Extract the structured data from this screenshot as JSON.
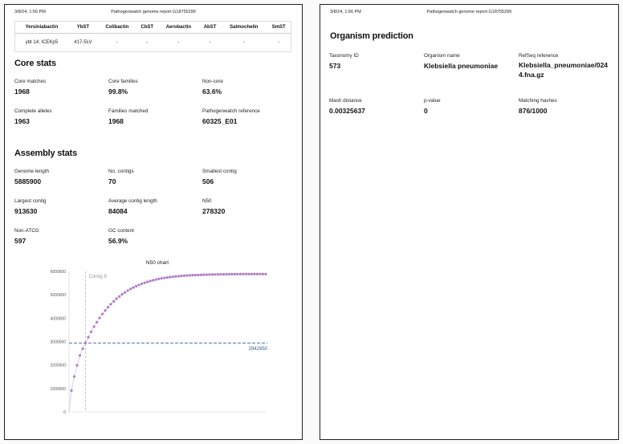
{
  "page1": {
    "date": "3/8/24, 1:56 PM",
    "report_title": "Pathogenwatch genome report G18755299",
    "typing_table": {
      "headers": [
        "Yersiniabactin",
        "YbST",
        "Colibactin",
        "CbST",
        "Aerobactin",
        "AbST",
        "Salmochelin",
        "SmST"
      ],
      "row": [
        "ybt 14; ICEKp5",
        "417-5LV",
        "-",
        "-",
        "-",
        "-",
        "-",
        "-"
      ]
    },
    "core_stats": {
      "title": "Core stats",
      "items": [
        {
          "label": "Core matches",
          "value": "1968"
        },
        {
          "label": "Core families",
          "value": "99.8%"
        },
        {
          "label": "Non-core",
          "value": "63.6%"
        },
        {
          "label": "Complete alleles",
          "value": "1963"
        },
        {
          "label": "Families matched",
          "value": "1968"
        },
        {
          "label": "Pathogenwatch reference",
          "value": "60325_E01"
        }
      ]
    },
    "assembly_stats": {
      "title": "Assembly stats",
      "items": [
        {
          "label": "Genome length",
          "value": "5885900"
        },
        {
          "label": "No. contigs",
          "value": "70"
        },
        {
          "label": "Smallest contig",
          "value": "506"
        },
        {
          "label": "Largest contig",
          "value": "913630"
        },
        {
          "label": "Average contig length",
          "value": "84084"
        },
        {
          "label": "N50",
          "value": "278320"
        },
        {
          "label": "Non-ATCG",
          "value": "597"
        },
        {
          "label": "GC content",
          "value": "56.9%"
        }
      ]
    }
  },
  "page2": {
    "date": "3/8/24, 1:56 PM",
    "report_title": "Pathogenwatch genome report G18755299",
    "organism_prediction": {
      "title": "Organism prediction",
      "items": [
        {
          "label": "Taxonomy ID",
          "value": "573"
        },
        {
          "label": "Organism name",
          "value": "Klebsiella pneumoniae"
        },
        {
          "label": "RefSeq reference",
          "value": "Klebsiella_pneumoniae/0244.fna.gz"
        },
        {
          "label": "Mash distance",
          "value": "0.00325637"
        },
        {
          "label": "p-value",
          "value": "0"
        },
        {
          "label": "Matching hashes",
          "value": "876/1000"
        }
      ]
    }
  },
  "colors": {
    "points": "#b07cc6",
    "n50_line": "#2c5d8a",
    "contig_line": "#bbbbbb"
  },
  "logo_text": "",
  "chart_data": {
    "type": "scatter",
    "title": "N50 chart",
    "xlabel": "",
    "ylabel": "",
    "ylim": [
      0,
      6000000
    ],
    "yticks": [
      0,
      1000000,
      2000000,
      3000000,
      4000000,
      5000000,
      6000000
    ],
    "n50_value": 2942950,
    "n50_label": "2942950",
    "contig_marker_index": 6,
    "contig_marker_label": "Contig 6",
    "num_contigs": 70,
    "y": [
      913630,
      1510000,
      1990000,
      2410000,
      2700000,
      2942950,
      3190000,
      3420000,
      3640000,
      3830000,
      4010000,
      4180000,
      4330000,
      4470000,
      4600000,
      4720000,
      4830000,
      4930000,
      5020000,
      5100000,
      5180000,
      5250000,
      5310000,
      5370000,
      5420000,
      5470000,
      5510000,
      5550000,
      5590000,
      5620000,
      5650000,
      5680000,
      5700000,
      5720000,
      5740000,
      5755000,
      5770000,
      5783000,
      5795000,
      5805000,
      5815000,
      5823000,
      5830000,
      5836000,
      5842000,
      5847000,
      5852000,
      5856000,
      5860000,
      5863000,
      5866000,
      5868500,
      5871000,
      5873000,
      5875000,
      5877000,
      5878500,
      5880000,
      5881000,
      5882000,
      5883000,
      5883600,
      5884100,
      5884500,
      5884900,
      5885200,
      5885400,
      5885600,
      5885800,
      5885900
    ]
  }
}
